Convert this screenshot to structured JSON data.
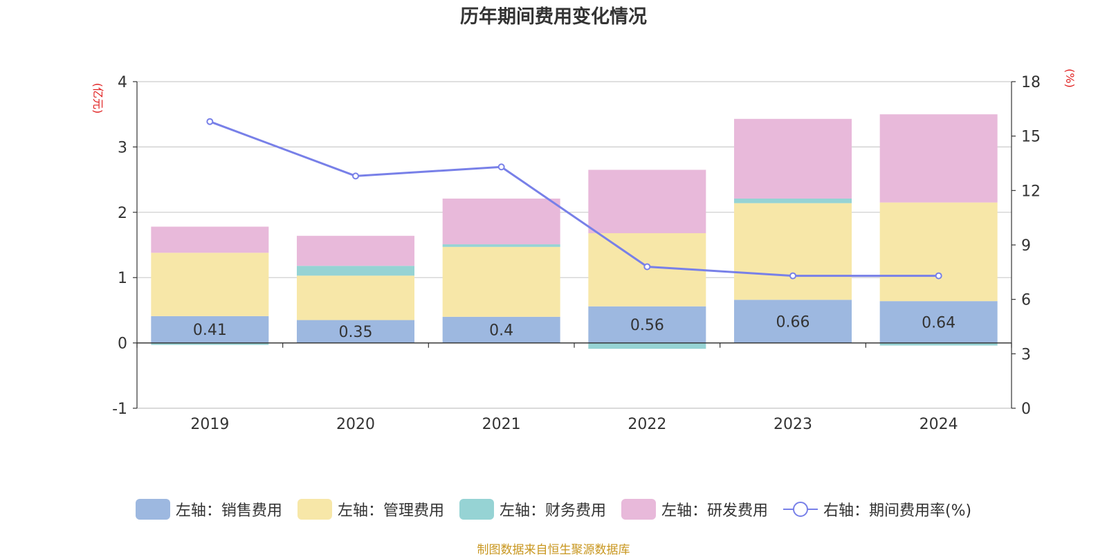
{
  "chart_data": {
    "type": "bar",
    "title": "历年期间费用变化情况",
    "categories": [
      "2019",
      "2020",
      "2021",
      "2022",
      "2023",
      "2024"
    ],
    "y_left": {
      "unit_label": "(亿元)",
      "ylim": [
        -1,
        4
      ],
      "ticks": [
        "4",
        "3",
        "2",
        "1",
        "0",
        "-1"
      ]
    },
    "y_right": {
      "unit_label": "(%)",
      "ylim": [
        0,
        18
      ],
      "ticks": [
        "18",
        "15",
        "12",
        "9",
        "6",
        "3",
        "0"
      ]
    },
    "stacked": true,
    "series": [
      {
        "name": "左轴：销售费用",
        "axis": "left",
        "color": "#9db8e0",
        "values": [
          0.41,
          0.35,
          0.4,
          0.56,
          0.66,
          0.64
        ],
        "labels": [
          "0.41",
          "0.35",
          "0.4",
          "0.56",
          "0.66",
          "0.64"
        ]
      },
      {
        "name": "左轴：管理费用",
        "axis": "left",
        "color": "#f7e7a8",
        "values": [
          0.97,
          0.68,
          1.07,
          1.12,
          1.48,
          1.51
        ]
      },
      {
        "name": "左轴：财务费用",
        "axis": "left",
        "color": "#96d3d4",
        "values": [
          -0.03,
          0.15,
          0.04,
          -0.09,
          0.07,
          -0.04
        ]
      },
      {
        "name": "左轴：研发费用",
        "axis": "left",
        "color": "#e8b9da",
        "values": [
          0.4,
          0.46,
          0.7,
          0.97,
          1.22,
          1.35
        ]
      },
      {
        "name": "右轴：期间费用率(%)",
        "axis": "right",
        "type": "line",
        "color": "#7880e8",
        "values": [
          15.8,
          12.8,
          13.3,
          7.8,
          7.3,
          7.3
        ]
      }
    ],
    "grid": true,
    "legend_position": "bottom"
  },
  "source_note": "制图数据来自恒生聚源数据库"
}
